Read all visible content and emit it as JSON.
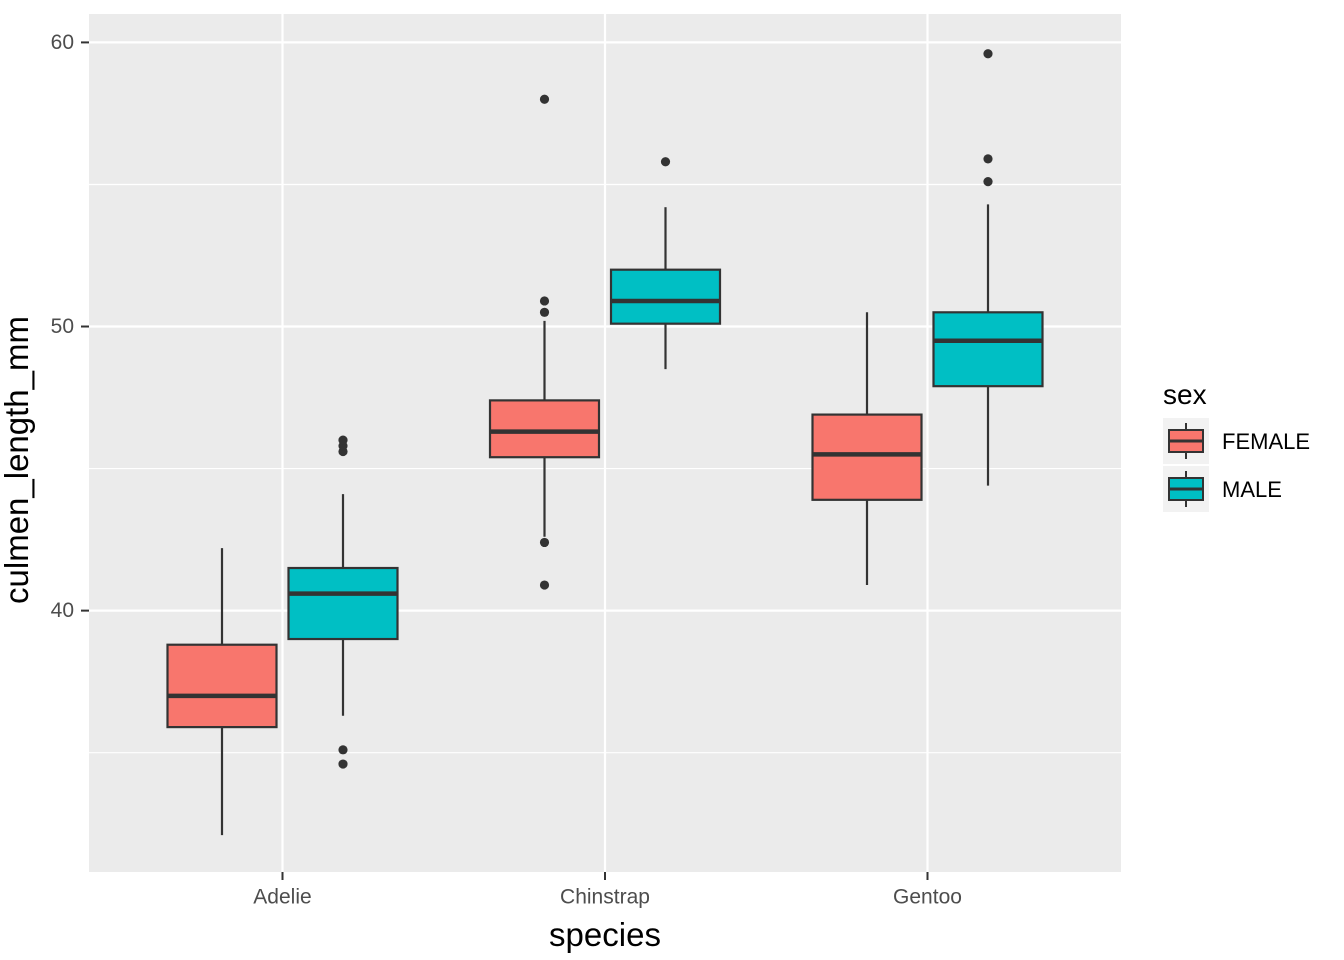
{
  "chart_data": {
    "type": "boxplot",
    "title": "",
    "xlabel": "species",
    "ylabel": "culmen_length_mm",
    "legend_title": "sex",
    "legend_position": "right",
    "grid": true,
    "categories": [
      "Adelie",
      "Chinstrap",
      "Gentoo"
    ],
    "y_axis": {
      "major_ticks": [
        40,
        50,
        60
      ],
      "minor_ticks": [
        35,
        45,
        55
      ],
      "ylim": [
        30.8,
        61.0
      ]
    },
    "series": [
      {
        "name": "FEMALE",
        "color": "#F8766D",
        "boxes": [
          {
            "category": "Adelie",
            "whisker_low": 32.1,
            "q1": 35.9,
            "median": 37.0,
            "q3": 38.8,
            "whisker_high": 42.2,
            "outliers": []
          },
          {
            "category": "Chinstrap",
            "whisker_low": 42.6,
            "q1": 45.4,
            "median": 46.3,
            "q3": 47.4,
            "whisker_high": 50.2,
            "outliers": [
              40.9,
              42.4,
              50.5,
              50.9,
              58.0
            ]
          },
          {
            "category": "Gentoo",
            "whisker_low": 40.9,
            "q1": 43.9,
            "median": 45.5,
            "q3": 46.9,
            "whisker_high": 50.5,
            "outliers": []
          }
        ]
      },
      {
        "name": "MALE",
        "color": "#00BFC4",
        "boxes": [
          {
            "category": "Adelie",
            "whisker_low": 36.3,
            "q1": 39.0,
            "median": 40.6,
            "q3": 41.5,
            "whisker_high": 44.1,
            "outliers": [
              34.6,
              35.1,
              45.6,
              45.8,
              46.0
            ]
          },
          {
            "category": "Chinstrap",
            "whisker_low": 48.5,
            "q1": 50.1,
            "median": 50.9,
            "q3": 52.0,
            "whisker_high": 54.2,
            "outliers": [
              55.8
            ]
          },
          {
            "category": "Gentoo",
            "whisker_low": 44.4,
            "q1": 47.9,
            "median": 49.5,
            "q3": 50.5,
            "whisker_high": 54.3,
            "outliers": [
              55.1,
              55.9,
              59.6
            ]
          }
        ]
      }
    ],
    "style": {
      "background": "#FFFFFF",
      "panel_bg": "#EBEBEB",
      "grid_color": "#FFFFFF",
      "box_border": "#333333",
      "median_color": "#333333",
      "outlier_color": "#333333",
      "tick_color": "#333333",
      "tick_label_color": "#4D4D4D",
      "axis_title_color": "#000000",
      "legend_key_bg": "#F2F2F2"
    }
  }
}
